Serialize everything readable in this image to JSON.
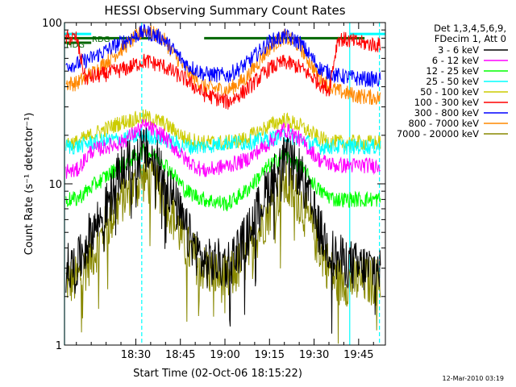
{
  "chart_data": {
    "type": "line",
    "title": "HESSI Observing Summary Count Rates",
    "xlabel": "Start Time (02-Oct-06 18:15:22)",
    "ylabel": "Count Rate (s⁻¹ detector⁻¹)",
    "yscale": "log",
    "ylim": [
      1,
      100
    ],
    "xlim_minutes": [
      -9,
      99
    ],
    "x_tick_minutes": [
      15,
      30,
      45,
      60,
      75,
      90
    ],
    "x_tick_labels": [
      "18:30",
      "18:45",
      "19:00",
      "19:15",
      "19:30",
      "19:45"
    ],
    "y_tick_labels": [
      "1",
      "10",
      "100"
    ],
    "legend_header": [
      "Det 1,3,4,5,6,9,",
      "FDecim 1, Att 0"
    ],
    "legend": [
      {
        "name": "3 - 6 keV",
        "color": "#000000"
      },
      {
        "name": "6 - 12 keV",
        "color": "#ff00ff"
      },
      {
        "name": "12 - 25 keV",
        "color": "#00ff00"
      },
      {
        "name": "25 - 50 keV",
        "color": "#00ffff"
      },
      {
        "name": "50 - 100 keV",
        "color": "#cccc00"
      },
      {
        "name": "100 - 300 keV",
        "color": "#ff0000"
      },
      {
        "name": "300 - 800 keV",
        "color": "#0000ff"
      },
      {
        "name": "800 - 7000 keV",
        "color": "#ff8800"
      },
      {
        "name": "7000 - 20000 keV",
        "color": "#888800"
      }
    ],
    "series": [
      {
        "name": "3 - 6 keV",
        "color": "#000000",
        "keypoints": [
          [
            -5,
            3.0
          ],
          [
            0,
            5.0
          ],
          [
            5,
            7.0
          ],
          [
            10,
            12.0
          ],
          [
            18,
            16.0
          ],
          [
            24,
            12.0
          ],
          [
            32,
            5.0
          ],
          [
            38,
            3.2
          ],
          [
            46,
            3.2
          ],
          [
            52,
            4.5
          ],
          [
            60,
            10.0
          ],
          [
            65,
            14.0
          ],
          [
            70,
            12.0
          ],
          [
            77,
            5.0
          ],
          [
            82,
            3.5
          ],
          [
            90,
            3.0
          ],
          [
            98,
            3.0
          ]
        ]
      },
      {
        "name": "6 - 12 keV",
        "color": "#ff00ff",
        "keypoints": [
          [
            -5,
            12.0
          ],
          [
            0,
            16.0
          ],
          [
            10,
            18.0
          ],
          [
            18,
            23.0
          ],
          [
            24,
            20.0
          ],
          [
            32,
            14.0
          ],
          [
            38,
            12.0
          ],
          [
            46,
            13.0
          ],
          [
            52,
            14.0
          ],
          [
            60,
            18.0
          ],
          [
            65,
            22.0
          ],
          [
            70,
            19.0
          ],
          [
            77,
            14.0
          ],
          [
            82,
            13.0
          ],
          [
            90,
            13.0
          ],
          [
            98,
            13.0
          ]
        ]
      },
      {
        "name": "12 - 25 keV",
        "color": "#00ff00",
        "keypoints": [
          [
            -5,
            8.0
          ],
          [
            0,
            9.5
          ],
          [
            10,
            13.0
          ],
          [
            18,
            16.0
          ],
          [
            24,
            14.0
          ],
          [
            32,
            9.0
          ],
          [
            38,
            8.0
          ],
          [
            46,
            7.5
          ],
          [
            52,
            9.0
          ],
          [
            60,
            13.0
          ],
          [
            65,
            15.0
          ],
          [
            70,
            13.0
          ],
          [
            77,
            9.0
          ],
          [
            82,
            8.0
          ],
          [
            90,
            8.0
          ],
          [
            98,
            8.0
          ]
        ]
      },
      {
        "name": "25 - 50 keV",
        "color": "#00ffff",
        "keypoints": [
          [
            -5,
            17.0
          ],
          [
            0,
            18.0
          ],
          [
            10,
            19.0
          ],
          [
            18,
            20.0
          ],
          [
            24,
            19.0
          ],
          [
            32,
            17.0
          ],
          [
            38,
            17.0
          ],
          [
            46,
            18.0
          ],
          [
            52,
            18.0
          ],
          [
            60,
            19.0
          ],
          [
            65,
            20.0
          ],
          [
            70,
            19.0
          ],
          [
            77,
            17.0
          ],
          [
            82,
            17.0
          ],
          [
            90,
            17.0
          ],
          [
            98,
            17.0
          ]
        ]
      },
      {
        "name": "50 - 100 keV",
        "color": "#cccc00",
        "keypoints": [
          [
            -5,
            18.0
          ],
          [
            0,
            20.0
          ],
          [
            10,
            24.0
          ],
          [
            18,
            26.0
          ],
          [
            24,
            24.0
          ],
          [
            32,
            19.0
          ],
          [
            38,
            18.0
          ],
          [
            46,
            18.0
          ],
          [
            52,
            19.0
          ],
          [
            60,
            23.0
          ],
          [
            65,
            25.0
          ],
          [
            70,
            23.0
          ],
          [
            77,
            19.0
          ],
          [
            82,
            18.0
          ],
          [
            90,
            18.0
          ],
          [
            98,
            18.0
          ]
        ]
      },
      {
        "name": "100 - 300 keV",
        "color": "#ff0000",
        "keypoints": [
          [
            -5,
            80.0
          ],
          [
            -2,
            45.0
          ],
          [
            5,
            48.0
          ],
          [
            12,
            52.0
          ],
          [
            18,
            58.0
          ],
          [
            24,
            54.0
          ],
          [
            32,
            44.0
          ],
          [
            38,
            36.0
          ],
          [
            46,
            32.0
          ],
          [
            52,
            38.0
          ],
          [
            60,
            52.0
          ],
          [
            65,
            57.0
          ],
          [
            70,
            53.0
          ],
          [
            77,
            42.0
          ],
          [
            80,
            38.0
          ],
          [
            83,
            80.0
          ],
          [
            90,
            75.0
          ],
          [
            98,
            72.0
          ]
        ]
      },
      {
        "name": "300 - 800 keV",
        "color": "#0000ff",
        "keypoints": [
          [
            -5,
            55.0
          ],
          [
            0,
            60.0
          ],
          [
            10,
            75.0
          ],
          [
            18,
            88.0
          ],
          [
            24,
            80.0
          ],
          [
            32,
            55.0
          ],
          [
            38,
            48.0
          ],
          [
            46,
            47.0
          ],
          [
            52,
            55.0
          ],
          [
            60,
            76.0
          ],
          [
            65,
            82.0
          ],
          [
            70,
            76.0
          ],
          [
            77,
            52.0
          ],
          [
            82,
            47.0
          ],
          [
            90,
            45.0
          ],
          [
            98,
            44.0
          ]
        ]
      },
      {
        "name": "800 - 7000 keV",
        "color": "#ff8800",
        "keypoints": [
          [
            -5,
            42.0
          ],
          [
            0,
            48.0
          ],
          [
            10,
            68.0
          ],
          [
            18,
            90.0
          ],
          [
            24,
            80.0
          ],
          [
            32,
            50.0
          ],
          [
            38,
            40.0
          ],
          [
            46,
            38.0
          ],
          [
            52,
            45.0
          ],
          [
            60,
            70.0
          ],
          [
            65,
            82.0
          ],
          [
            70,
            72.0
          ],
          [
            77,
            45.0
          ],
          [
            82,
            38.0
          ],
          [
            90,
            35.0
          ],
          [
            98,
            34.0
          ]
        ]
      },
      {
        "name": "7000 - 20000 keV",
        "color": "#888800",
        "keypoints": [
          [
            -5,
            2.5
          ],
          [
            0,
            3.5
          ],
          [
            10,
            8.0
          ],
          [
            18,
            11.0
          ],
          [
            24,
            9.0
          ],
          [
            32,
            4.0
          ],
          [
            38,
            3.0
          ],
          [
            46,
            2.5
          ],
          [
            52,
            3.5
          ],
          [
            60,
            7.0
          ],
          [
            65,
            10.0
          ],
          [
            70,
            8.0
          ],
          [
            77,
            4.0
          ],
          [
            82,
            2.5
          ],
          [
            90,
            2.5
          ],
          [
            98,
            2.5
          ]
        ]
      }
    ],
    "level_flags": [
      {
        "label": "RDG",
        "color": "#006600",
        "level": 80,
        "segments": [
          [
            -9,
            20
          ],
          [
            38,
            92
          ]
        ]
      },
      {
        "label": "HDG",
        "color": "#006600",
        "level": 75,
        "segments": [
          [
            -9,
            0
          ]
        ]
      },
      {
        "label": "",
        "color": "#00ffff",
        "level": 85,
        "segments": [
          [
            -9,
            0
          ],
          [
            87,
            99
          ]
        ]
      }
    ],
    "vlines_solid_minutes": [
      -9,
      87
    ],
    "vlines_dashed_minutes": [
      17,
      97
    ],
    "timestamp": "12-Mar-2010 03:19"
  }
}
